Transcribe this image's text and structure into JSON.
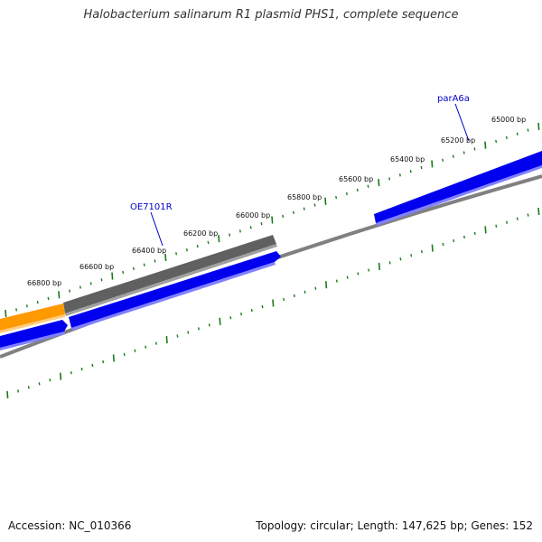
{
  "title": "Halobacterium salinarum R1 plasmid PHS1, complete sequence",
  "footer": {
    "accession_label": "Accession: NC_010366",
    "topology_label": "Topology: circular; Length: 147,625 bp; Genes: 152"
  },
  "colors": {
    "tick": "#1a7a1a",
    "backbone": "#808080",
    "gene_blue": "#0000ee",
    "gene_gray": "#606060",
    "gene_orange": "#ff9900",
    "gene_label": "#0000cc"
  },
  "ticks": [
    {
      "label": "65000 bp"
    },
    {
      "label": "65200 bp"
    },
    {
      "label": "65400 bp"
    },
    {
      "label": "65600 bp"
    },
    {
      "label": "65800 bp"
    },
    {
      "label": "66000 bp"
    },
    {
      "label": "66200 bp"
    },
    {
      "label": "66400 bp"
    },
    {
      "label": "66600 bp"
    },
    {
      "label": "66800 bp"
    }
  ],
  "gene_labels": [
    {
      "label": "parA6a"
    },
    {
      "label": "OE7101R"
    }
  ]
}
